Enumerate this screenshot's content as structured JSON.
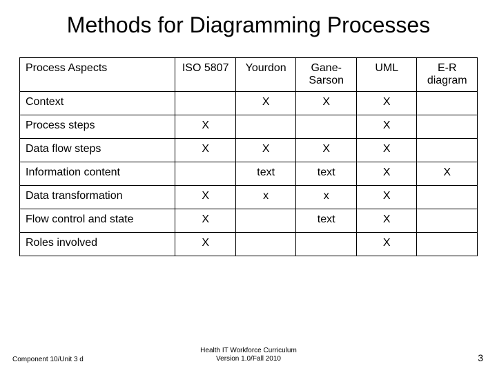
{
  "title": "Methods for Diagramming Processes",
  "table": {
    "columns": [
      "Process Aspects",
      "ISO 5807",
      "Yourdon",
      "Gane-Sarson",
      "UML",
      "E-R diagram"
    ],
    "rows": [
      {
        "label": "Context",
        "cells": [
          "",
          "X",
          "X",
          "X",
          ""
        ]
      },
      {
        "label": "Process steps",
        "cells": [
          "X",
          "",
          "",
          "X",
          ""
        ]
      },
      {
        "label": "Data flow steps",
        "cells": [
          "X",
          "X",
          "X",
          "X",
          ""
        ]
      },
      {
        "label": "Information content",
        "cells": [
          "",
          "text",
          "text",
          "X",
          "X"
        ]
      },
      {
        "label": "Data transformation",
        "cells": [
          "X",
          "x",
          "x",
          "X",
          ""
        ]
      },
      {
        "label": "Flow control and state",
        "cells": [
          "X",
          "",
          "text",
          "X",
          ""
        ]
      },
      {
        "label": "Roles involved",
        "cells": [
          "X",
          "",
          "",
          "X",
          ""
        ]
      }
    ],
    "col_align": [
      "left",
      "center",
      "center",
      "center",
      "center",
      "center"
    ],
    "border_color": "#000000",
    "background_color": "#ffffff",
    "font_size": 16
  },
  "footer": {
    "left": "Component 10/Unit 3 d",
    "center_line1": "Health IT Workforce Curriculum",
    "center_line2": "Version 1.0/Fall 2010",
    "page_number": "3"
  }
}
